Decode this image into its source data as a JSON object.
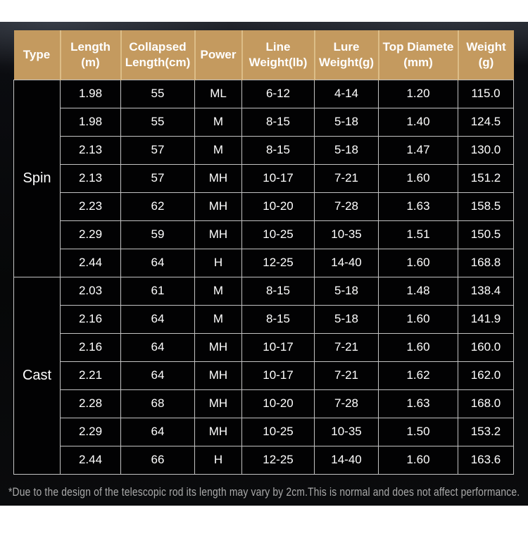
{
  "colors": {
    "page_bg": "#ffffff",
    "panel_bg": "#0b0c10",
    "panel_glow": "#22252c",
    "header_bg": "#c49a5f",
    "header_divider": "#dcbd87",
    "grid_line": "#c2c2c2",
    "header_text": "#ffffff",
    "body_text": "#ffffff",
    "footnote_text": "#a9a9a9",
    "cell_bg": "#020203"
  },
  "chart_data": {
    "type": "table",
    "title": "",
    "columns": [
      "Type",
      "Length\n(m)",
      "Collapsed\nLength(cm)",
      "Power",
      "Line\nWeight(lb)",
      "Lure\nWeight(g)",
      "Top Diamete\n(mm)",
      "Weight\n(g)"
    ],
    "column_ids": [
      "type",
      "length-m",
      "collapsed-length-cm",
      "power",
      "line-weight-lb",
      "lure-weight-g",
      "top-diameter-mm",
      "weight-g"
    ],
    "row_groups": [
      {
        "group": "Spin",
        "rows": [
          [
            "1.98",
            "55",
            "ML",
            "6-12",
            "4-14",
            "1.20",
            "115.0"
          ],
          [
            "1.98",
            "55",
            "M",
            "8-15",
            "5-18",
            "1.40",
            "124.5"
          ],
          [
            "2.13",
            "57",
            "M",
            "8-15",
            "5-18",
            "1.47",
            "130.0"
          ],
          [
            "2.13",
            "57",
            "MH",
            "10-17",
            "7-21",
            "1.60",
            "151.2"
          ],
          [
            "2.23",
            "62",
            "MH",
            "10-20",
            "7-28",
            "1.63",
            "158.5"
          ],
          [
            "2.29",
            "59",
            "MH",
            "10-25",
            "10-35",
            "1.51",
            "150.5"
          ],
          [
            "2.44",
            "64",
            "H",
            "12-25",
            "14-40",
            "1.60",
            "168.8"
          ]
        ]
      },
      {
        "group": "Cast",
        "rows": [
          [
            "2.03",
            "61",
            "M",
            "8-15",
            "5-18",
            "1.48",
            "138.4"
          ],
          [
            "2.16",
            "64",
            "M",
            "8-15",
            "5-18",
            "1.60",
            "141.9"
          ],
          [
            "2.16",
            "64",
            "MH",
            "10-17",
            "7-21",
            "1.60",
            "160.0"
          ],
          [
            "2.21",
            "64",
            "MH",
            "10-17",
            "7-21",
            "1.62",
            "162.0"
          ],
          [
            "2.28",
            "68",
            "MH",
            "10-20",
            "7-28",
            "1.63",
            "168.0"
          ],
          [
            "2.29",
            "64",
            "MH",
            "10-25",
            "10-35",
            "1.50",
            "153.2"
          ],
          [
            "2.44",
            "66",
            "H",
            "12-25",
            "14-40",
            "1.60",
            "163.6"
          ]
        ]
      }
    ],
    "footnote": "*Due to the design of the telescopic rod its length may vary by 2cm.This is normal and does not affect performance."
  }
}
